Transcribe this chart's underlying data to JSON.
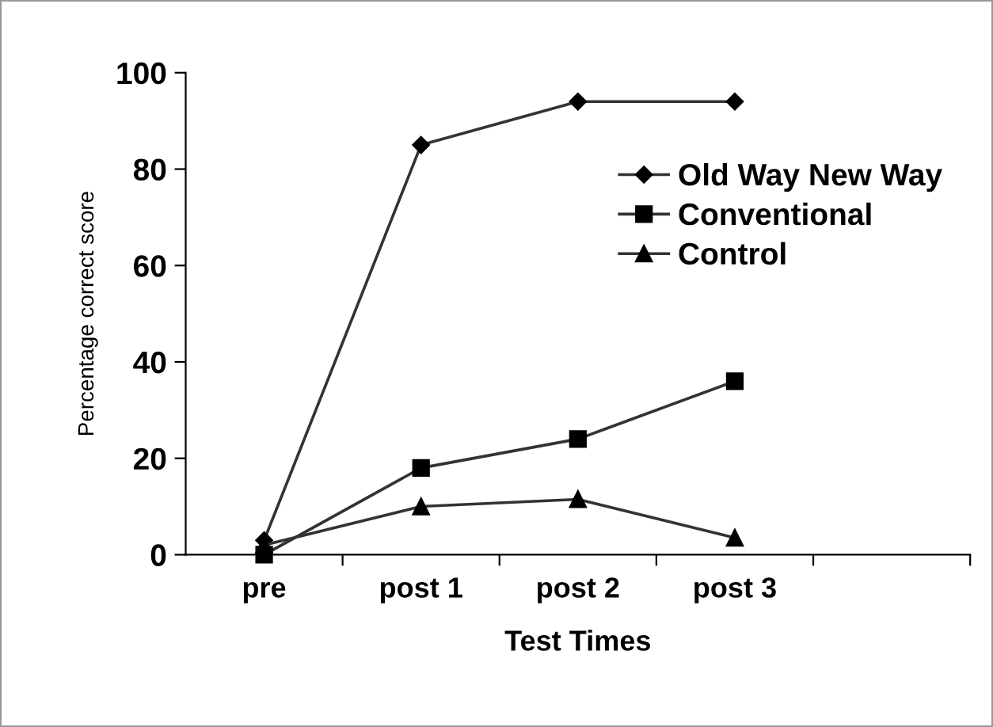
{
  "chart_data": {
    "type": "line",
    "xlabel": "Test Times",
    "ylabel": "Percentage correct score",
    "categories": [
      "pre",
      "post 1",
      "post 2",
      "post 3",
      null
    ],
    "ylim": [
      0,
      100
    ],
    "yticks": [
      0,
      20,
      40,
      60,
      80,
      100
    ],
    "grid": false,
    "legend": "top right",
    "line_style": "solid",
    "series": [
      {
        "name": "Old Way New Way",
        "color": "#333333",
        "marker": "diamond",
        "values": [
          3,
          85,
          94,
          94,
          null
        ]
      },
      {
        "name": "Conventional",
        "color": "#333333",
        "marker": "square",
        "values": [
          0,
          18,
          24,
          36,
          null
        ]
      },
      {
        "name": "Control",
        "color": "#333333",
        "marker": "triangle",
        "values": [
          2,
          10,
          11.5,
          3.5,
          null
        ]
      }
    ]
  }
}
